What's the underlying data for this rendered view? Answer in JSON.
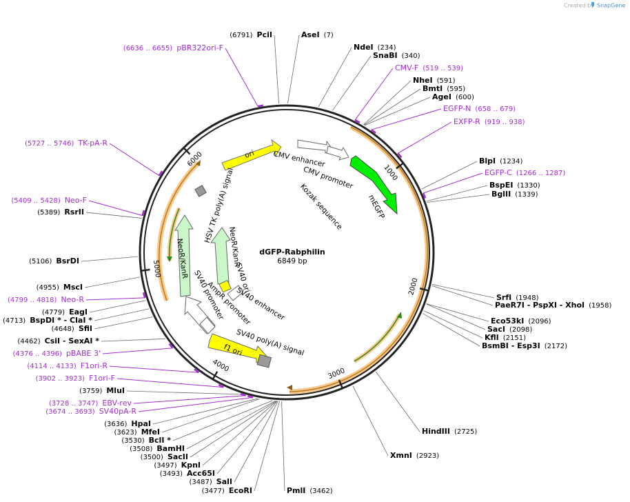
{
  "header": {
    "credit": "Created by",
    "brand": "SnapGene"
  },
  "map": {
    "name": "dGFP-Rabphilin",
    "length": "6849 bp",
    "ticks": [
      1000,
      2000,
      3000,
      4000,
      5000,
      6000
    ]
  },
  "enzymes": [
    {
      "name": "PciI",
      "pos": "(6791)"
    },
    {
      "name": "AseI",
      "pos": "(7)"
    },
    {
      "name": "NdeI",
      "pos": "(234)"
    },
    {
      "name": "SnaBI",
      "pos": "(340)"
    },
    {
      "name": "NheI",
      "pos": "(591)"
    },
    {
      "name": "BmtI",
      "pos": "(595)"
    },
    {
      "name": "AgeI",
      "pos": "(600)"
    },
    {
      "name": "BlpI",
      "pos": "(1234)"
    },
    {
      "name": "BspEI",
      "pos": "(1330)"
    },
    {
      "name": "BglII",
      "pos": "(1339)"
    },
    {
      "name": "SrfI",
      "pos": "(1948)"
    },
    {
      "name": "PaeR7I  -  PspXI  -  XhoI",
      "pos": "(1958)"
    },
    {
      "name": "Eco53kI",
      "pos": "(2096)"
    },
    {
      "name": "SacI",
      "pos": "(2098)"
    },
    {
      "name": "KflI",
      "pos": "(2151)"
    },
    {
      "name": "BsmBI  -  Esp3I",
      "pos": "(2172)"
    },
    {
      "name": "HindIII",
      "pos": "(2725)"
    },
    {
      "name": "XmnI",
      "pos": "(2923)"
    },
    {
      "name": "PmlI",
      "pos": "(3462)"
    },
    {
      "name": "EcoRI",
      "pos": "(3477)"
    },
    {
      "name": "SalI",
      "pos": "(3487)"
    },
    {
      "name": "Acc65I",
      "pos": "(3493)"
    },
    {
      "name": "KpnI",
      "pos": "(3497)"
    },
    {
      "name": "SacII",
      "pos": "(3500)"
    },
    {
      "name": "BamHI",
      "pos": "(3508)"
    },
    {
      "name": "BclI *",
      "pos": "(3530)"
    },
    {
      "name": "MfeI",
      "pos": "(3623)"
    },
    {
      "name": "HpaI",
      "pos": "(3636)"
    },
    {
      "name": "MluI",
      "pos": "(3759)"
    },
    {
      "name": "CsiI  -  SexAI *",
      "pos": "(4462)"
    },
    {
      "name": "SfiI",
      "pos": "(4648)"
    },
    {
      "name": "BspDI *  -  ClaI *",
      "pos": "(4713)"
    },
    {
      "name": "EagI",
      "pos": "(4779)"
    },
    {
      "name": "MscI",
      "pos": "(4955)"
    },
    {
      "name": "BsrDI",
      "pos": "(5106)"
    },
    {
      "name": "RsrII",
      "pos": "(5389)"
    }
  ],
  "primers": [
    {
      "name": "pBR322ori-F",
      "pos": "(6636 .. 6655)"
    },
    {
      "name": "CMV-F",
      "pos": "(519 .. 539)"
    },
    {
      "name": "EGFP-N",
      "pos": "(658 .. 679)"
    },
    {
      "name": "EXFP-R",
      "pos": "(919 .. 938)"
    },
    {
      "name": "EGFP-C",
      "pos": "(1266 .. 1287)"
    },
    {
      "name": "SV40pA-R",
      "pos": "(3674 .. 3693)"
    },
    {
      "name": "EBV-rev",
      "pos": "(3728 .. 3747)"
    },
    {
      "name": "F1ori-F",
      "pos": "(3902 .. 3923)"
    },
    {
      "name": "F1ori-R",
      "pos": "(4114 .. 4133)"
    },
    {
      "name": "pBABE 3'",
      "pos": "(4376 .. 4396)"
    },
    {
      "name": "Neo-R",
      "pos": "(4799 .. 4818)"
    },
    {
      "name": "Neo-F",
      "pos": "(5409 .. 5428)"
    },
    {
      "name": "TK-pA-R",
      "pos": "(5727 .. 5746)"
    }
  ],
  "features": [
    "ori",
    "CMV enhancer",
    "CMV promoter",
    "Kozak sequence",
    "mEGFP",
    "HSV TK poly(A) signal",
    "NeoR/KanR",
    "NeoR/KanR",
    "SV40 ori",
    "SV40 enhancer",
    "AmpR promoter",
    "SV40 promoter",
    "f1 ori",
    "SV40 poly(A) signal"
  ]
}
